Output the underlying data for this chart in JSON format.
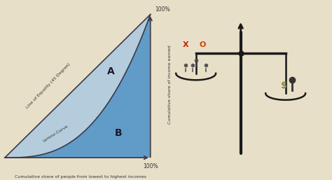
{
  "bg_color": "#f0ebe0",
  "chart_bg": "#ffffff",
  "line_color": "#3a3a4a",
  "fill_A_color": "#a8c8e0",
  "fill_B_color": "#4a90c8",
  "xlabel": "Cumulative share of people from lowest to highest incomes",
  "ylabel": "Cumulative share of income earned",
  "label_A": "A",
  "label_B": "B",
  "label_equality": "Line of Equality (45 Degree)",
  "label_lorenz": "Lorenz-Curve",
  "x_end_label": "100%",
  "y_end_label": "100%",
  "lorenz_power": 2.8,
  "font_color": "#333333",
  "right_bg": "#e8dfc8"
}
